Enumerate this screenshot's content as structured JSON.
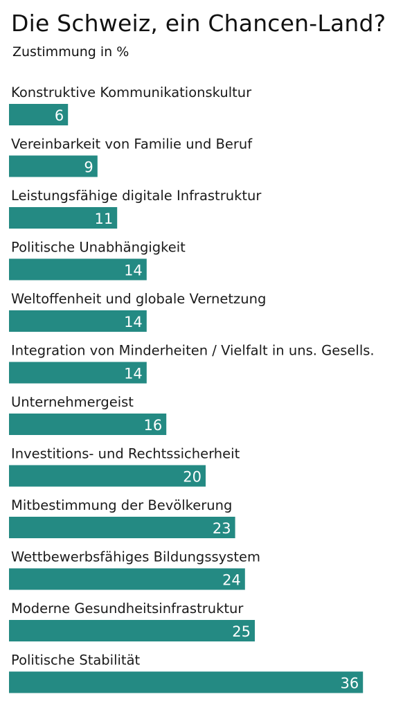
{
  "title": "Die Schweiz, ein Chancen-Land?",
  "subtitle": "Zustimmung in %",
  "colors": {
    "bar": "#248a83",
    "text": "#1a1a1a",
    "value_text": "#ffffff"
  },
  "chart_data": {
    "type": "bar",
    "orientation": "horizontal",
    "title": "Die Schweiz, ein Chancen-Land?",
    "subtitle": "Zustimmung in %",
    "categories": [
      "Konstruktive Kommunikationskultur",
      "Vereinbarkeit von Familie und Beruf",
      "Leistungsfähige digitale Infrastruktur",
      "Politische Unabhängigkeit",
      "Weltoffenheit und globale Vernetzung",
      "Integration von Minderheiten / Vielfalt in uns. Gesells.",
      "Unternehmergeist",
      "Investitions- und Rechtssicherheit",
      "Mitbestimmung der Bevölkerung",
      "Wettbewerbsfähiges Bildungssystem",
      "Moderne Gesundheitsinfrastruktur",
      "Politische Stabilität"
    ],
    "values": [
      6,
      9,
      11,
      14,
      14,
      14,
      16,
      20,
      23,
      24,
      25,
      36
    ],
    "value_labels": [
      "6",
      "9",
      "11",
      "14",
      "14",
      "14",
      "16",
      "20",
      "23",
      "24",
      "25",
      "36"
    ],
    "grid": false,
    "legend": "none"
  }
}
